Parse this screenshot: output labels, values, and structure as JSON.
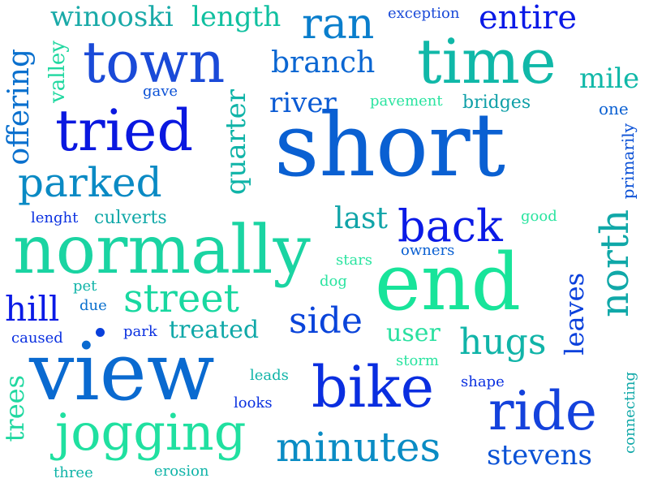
{
  "palette": {
    "deep_blue": "#0a14e6",
    "royal_blue": "#1a3ad8",
    "mid_blue": "#0a6ad0",
    "teal": "#0aa0a8",
    "sea_green": "#12c0a0",
    "spring_green": "#18e49a",
    "mint": "#2cf0a0"
  },
  "words": {
    "short": "short",
    "view": "view",
    "end": "end",
    "normally": "normally",
    "time": "time",
    "town": "town",
    "tried": "tried",
    "bike": "bike",
    "ride": "ride",
    "jogging": "jogging",
    "minutes": "minutes",
    "back": "back",
    "street": "street",
    "parked": "parked",
    "ran": "ran",
    "entire": "entire",
    "branch": "branch",
    "winooski": "winooski",
    "length": "length",
    "river": "river",
    "hill": "hill",
    "side": "side",
    "hugs": "hugs",
    "north": "north",
    "leaves": "leaves",
    "stevens": "stevens",
    "mile": "mile",
    "last": "last",
    "user": "user",
    "treated": "treated",
    "bridges": "bridges",
    "quarter": "quarter",
    "offering": "offering",
    "valley": "valley",
    "trees": "trees",
    "culverts": "culverts",
    "exception": "exception",
    "pavement": "pavement",
    "gave": "gave",
    "one": "one",
    "primarily": "primarily",
    "lenght": "lenght",
    "good": "good",
    "owners": "owners",
    "stars": "stars",
    "dog": "dog",
    "pet": "pet",
    "due": "due",
    "park": "park",
    "caused": "caused",
    "storm": "storm",
    "shape": "shape",
    "leads": "leads",
    "looks": "looks",
    "connecting": "connecting",
    "three": "three",
    "erosion": "erosion"
  }
}
